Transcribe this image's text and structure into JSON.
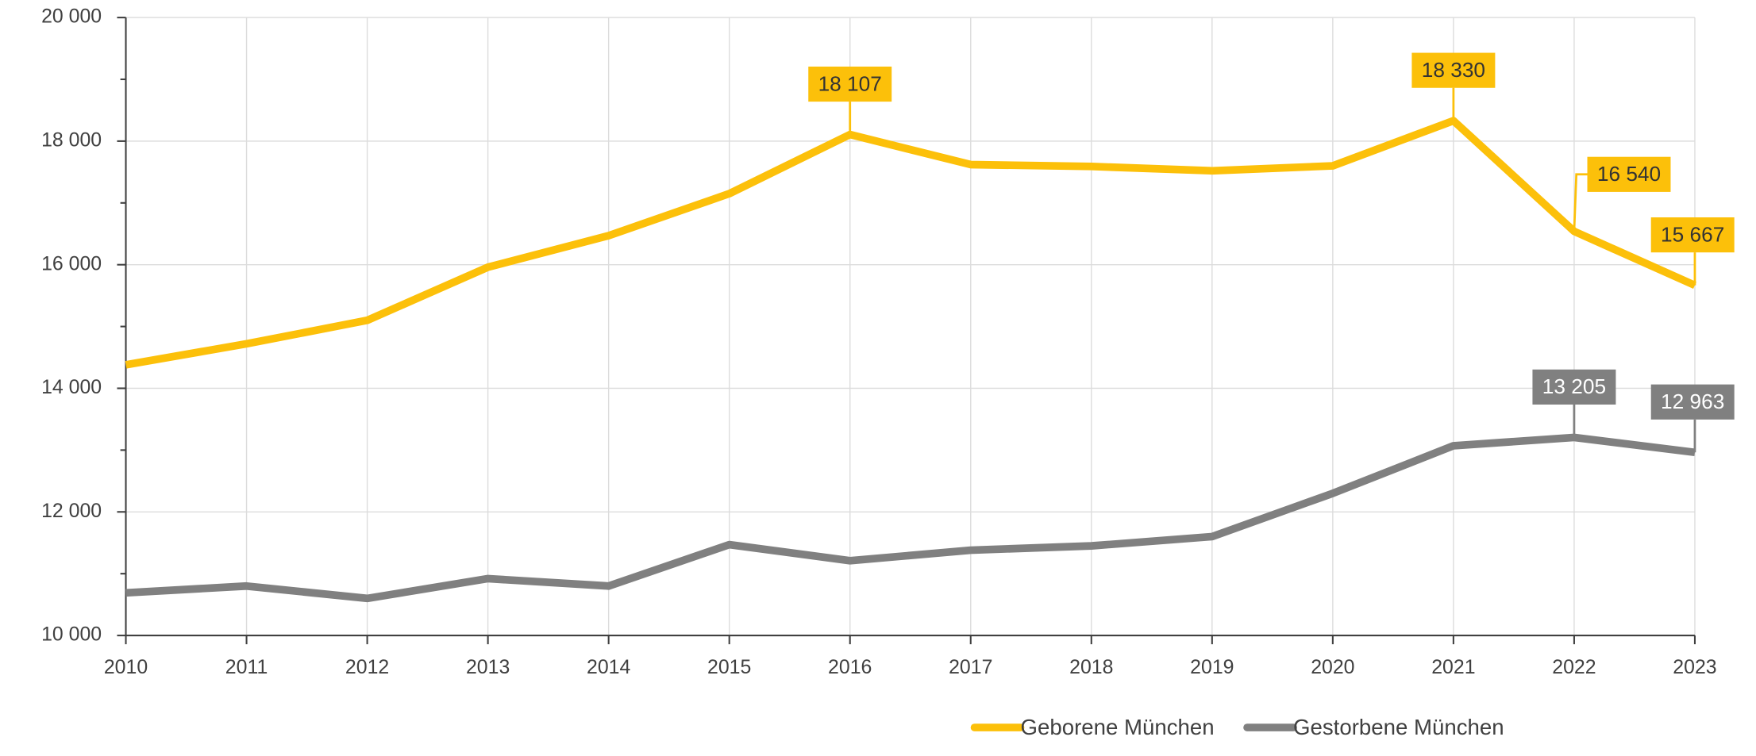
{
  "chart_data": {
    "type": "line",
    "categories": [
      "2010",
      "2011",
      "2012",
      "2013",
      "2014",
      "2015",
      "2016",
      "2017",
      "2018",
      "2019",
      "2020",
      "2021",
      "2022",
      "2023"
    ],
    "series": [
      {
        "name": "Geborene München",
        "color": "#fcc00a",
        "values": [
          14380,
          14720,
          15100,
          15960,
          16470,
          17150,
          18107,
          17620,
          17590,
          17520,
          17600,
          18330,
          16540,
          15667
        ],
        "value_labels": [
          null,
          null,
          null,
          null,
          null,
          null,
          "18 107",
          null,
          null,
          null,
          null,
          "18 330",
          "16 540",
          "15 667"
        ]
      },
      {
        "name": "Gestorbene München",
        "color": "#808080",
        "values": [
          10690,
          10800,
          10600,
          10920,
          10800,
          11470,
          11210,
          11380,
          11450,
          11600,
          12300,
          13070,
          13205,
          12963
        ],
        "value_labels": [
          null,
          null,
          null,
          null,
          null,
          null,
          null,
          null,
          null,
          null,
          null,
          null,
          "13 205",
          "12 963"
        ]
      }
    ],
    "ylim": [
      10000,
      20000
    ],
    "yticks": [
      {
        "value": 10000,
        "label": "10 000"
      },
      {
        "value": 12000,
        "label": "12 000"
      },
      {
        "value": 14000,
        "label": "14 000"
      },
      {
        "value": 16000,
        "label": "16 000"
      },
      {
        "value": 18000,
        "label": "18 000"
      },
      {
        "value": 20000,
        "label": "20 000"
      }
    ],
    "grid": true
  }
}
